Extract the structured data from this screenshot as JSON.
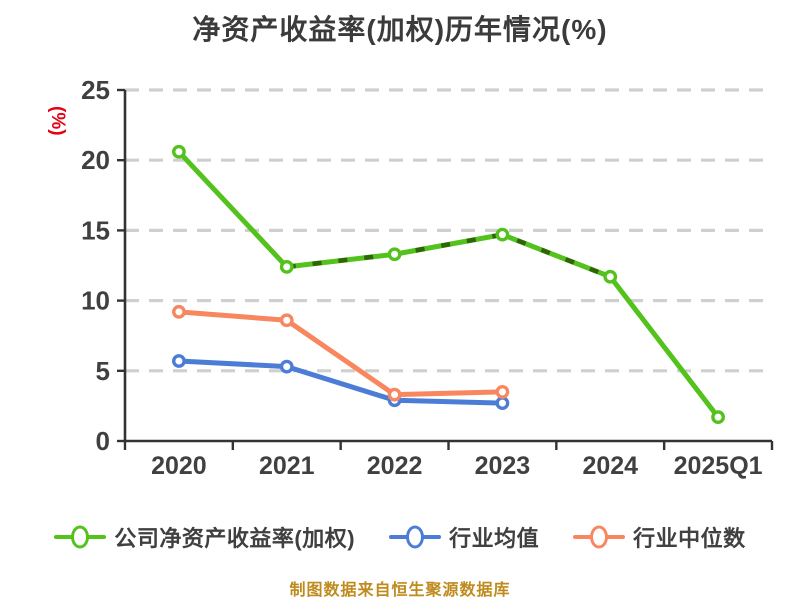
{
  "title": "净资产收益率(加权)历年情况(%)",
  "y_axis_unit": "(%)",
  "footer": "制图数据来自恒生聚源数据库",
  "colors": {
    "company": "#53c21d",
    "company_dash_overlay": "#2f6409",
    "industry_avg": "#4b7dd7",
    "industry_median": "#f8875f",
    "title_text": "#3b3b3b",
    "tick_text": "#404040",
    "axis_line": "#333333",
    "gridline": "#cfcfcf",
    "unit_label_red": "#e60012",
    "footer_gold": "#bf8b1f",
    "marker_fill": "#ffffff"
  },
  "legend": {
    "items": [
      {
        "label": "公司净资产收益率(加权)",
        "color_key": "company"
      },
      {
        "label": "行业均值",
        "color_key": "industry_avg"
      },
      {
        "label": "行业中位数",
        "color_key": "industry_median"
      }
    ]
  },
  "chart_data": {
    "type": "line",
    "categories": [
      "2020",
      "2021",
      "2022",
      "2023",
      "2024",
      "2025Q1"
    ],
    "series": [
      {
        "name": "公司净资产收益率(加权)",
        "color_key": "company",
        "marker": "circle",
        "values": [
          20.6,
          12.4,
          13.3,
          14.7,
          11.7,
          1.7
        ],
        "dashed_overlay_range": [
          1,
          4
        ]
      },
      {
        "name": "行业均值",
        "color_key": "industry_avg",
        "marker": "circle",
        "values": [
          5.7,
          5.3,
          2.9,
          2.7,
          null,
          null
        ]
      },
      {
        "name": "行业中位数",
        "color_key": "industry_median",
        "marker": "circle",
        "values": [
          9.2,
          8.6,
          3.3,
          3.5,
          null,
          null
        ]
      }
    ],
    "title": "净资产收益率(加权)历年情况(%)",
    "xlabel": "",
    "ylabel": "(%)",
    "ylim": [
      0,
      25
    ],
    "yticks": [
      0,
      5,
      10,
      15,
      20,
      25
    ],
    "grid": "horizontal-dashed",
    "legend_position": "bottom"
  }
}
